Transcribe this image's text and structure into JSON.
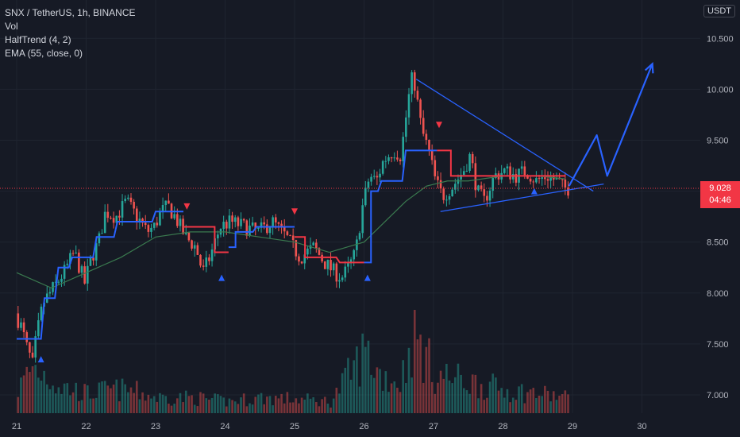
{
  "legend": {
    "symbol": "SNX / TetherUS, 1h, BINANCE",
    "vol": "Vol",
    "halftrend": "HalfTrend (4, 2)",
    "ema": "EMA (55, close, 0)"
  },
  "currency": "USDT",
  "current_price": "9.028",
  "countdown": "04:46",
  "colors": {
    "background": "#161a25",
    "up": "#26a69a",
    "down": "#ef5350",
    "halftrend_up": "#2962ff",
    "halftrend_down": "#f23645",
    "ema": "#3a7a4f",
    "drawing": "#2962ff"
  },
  "chart_data": {
    "type": "line",
    "title": "SNX / TetherUS, 1h, BINANCE",
    "xlabel": "",
    "ylabel": "",
    "x_ticks": [
      "21",
      "22",
      "23",
      "24",
      "25",
      "26",
      "27",
      "28",
      "29",
      "30"
    ],
    "y_ticks": [
      "10.500",
      "10.000",
      "9.500",
      "9.000",
      "8.500",
      "8.000",
      "7.500",
      "7.000"
    ],
    "ylim": [
      6.85,
      10.7
    ],
    "xlim": [
      21.0,
      30.5
    ],
    "grid": true,
    "current_price": 9.028,
    "price_path": [
      [
        21.0,
        7.8
      ],
      [
        21.1,
        7.65
      ],
      [
        21.15,
        7.5
      ],
      [
        21.25,
        7.3
      ],
      [
        21.3,
        7.55
      ],
      [
        21.4,
        7.9
      ],
      [
        21.55,
        8.05
      ],
      [
        21.7,
        8.2
      ],
      [
        21.85,
        8.4
      ],
      [
        22.0,
        8.1
      ],
      [
        22.1,
        8.35
      ],
      [
        22.2,
        8.5
      ],
      [
        22.3,
        8.8
      ],
      [
        22.45,
        8.75
      ],
      [
        22.6,
        8.9
      ],
      [
        22.75,
        8.75
      ],
      [
        22.9,
        8.6
      ],
      [
        23.0,
        8.65
      ],
      [
        23.1,
        8.8
      ],
      [
        23.2,
        8.85
      ],
      [
        23.3,
        8.75
      ],
      [
        23.45,
        8.55
      ],
      [
        23.6,
        8.45
      ],
      [
        23.7,
        8.2
      ],
      [
        23.8,
        8.35
      ],
      [
        23.95,
        8.65
      ],
      [
        24.1,
        8.7
      ],
      [
        24.3,
        8.65
      ],
      [
        24.5,
        8.6
      ],
      [
        24.7,
        8.7
      ],
      [
        24.9,
        8.55
      ],
      [
        25.0,
        8.45
      ],
      [
        25.1,
        8.35
      ],
      [
        25.3,
        8.45
      ],
      [
        25.45,
        8.3
      ],
      [
        25.6,
        8.2
      ],
      [
        25.7,
        8.15
      ],
      [
        25.8,
        8.25
      ],
      [
        25.9,
        8.4
      ],
      [
        26.0,
        8.85
      ],
      [
        26.1,
        9.15
      ],
      [
        26.2,
        9.1
      ],
      [
        26.3,
        9.3
      ],
      [
        26.45,
        9.4
      ],
      [
        26.55,
        9.35
      ],
      [
        26.7,
        10.1
      ],
      [
        26.75,
        10.05
      ],
      [
        26.85,
        9.6
      ],
      [
        26.95,
        9.4
      ],
      [
        27.05,
        9.1
      ],
      [
        27.15,
        8.95
      ],
      [
        27.3,
        9.05
      ],
      [
        27.45,
        9.2
      ],
      [
        27.55,
        9.35
      ],
      [
        27.65,
        9.0
      ],
      [
        27.75,
        8.9
      ],
      [
        27.9,
        9.15
      ],
      [
        28.05,
        9.2
      ],
      [
        28.2,
        9.15
      ],
      [
        28.35,
        9.2
      ],
      [
        28.5,
        9.1
      ],
      [
        28.65,
        9.15
      ],
      [
        28.8,
        9.1
      ],
      [
        28.9,
        9.028
      ]
    ],
    "volume_path": [
      [
        21.0,
        0.3
      ],
      [
        21.2,
        0.6
      ],
      [
        21.4,
        0.5
      ],
      [
        21.6,
        0.35
      ],
      [
        22.0,
        0.25
      ],
      [
        22.3,
        0.3
      ],
      [
        22.6,
        0.3
      ],
      [
        23.0,
        0.2
      ],
      [
        23.5,
        0.2
      ],
      [
        24.0,
        0.15
      ],
      [
        24.5,
        0.2
      ],
      [
        25.0,
        0.18
      ],
      [
        25.5,
        0.15
      ],
      [
        26.0,
        0.8
      ],
      [
        26.2,
        0.5
      ],
      [
        26.5,
        0.4
      ],
      [
        26.7,
        1.0
      ],
      [
        27.0,
        0.5
      ],
      [
        27.5,
        0.4
      ],
      [
        28.0,
        0.3
      ],
      [
        28.5,
        0.25
      ],
      [
        28.9,
        0.2
      ]
    ],
    "series": [
      {
        "name": "HalfTrend (4, 2)",
        "segments": [
          {
            "trend": "up",
            "points": [
              [
                21.0,
                7.55
              ],
              [
                21.35,
                7.55
              ],
              [
                21.4,
                7.95
              ],
              [
                21.55,
                7.95
              ],
              [
                21.6,
                8.25
              ],
              [
                21.75,
                8.25
              ],
              [
                21.8,
                8.35
              ],
              [
                22.1,
                8.35
              ],
              [
                22.15,
                8.55
              ],
              [
                22.4,
                8.55
              ],
              [
                22.45,
                8.7
              ],
              [
                22.95,
                8.7
              ],
              [
                23.0,
                8.8
              ],
              [
                23.4,
                8.8
              ]
            ]
          },
          {
            "trend": "down",
            "points": [
              [
                23.4,
                8.65
              ],
              [
                23.85,
                8.65
              ],
              [
                23.85,
                8.4
              ],
              [
                24.05,
                8.4
              ]
            ]
          },
          {
            "trend": "up",
            "points": [
              [
                24.05,
                8.45
              ],
              [
                24.15,
                8.45
              ],
              [
                24.15,
                8.6
              ],
              [
                24.4,
                8.6
              ],
              [
                24.45,
                8.65
              ],
              [
                24.95,
                8.65
              ],
              [
                25.0,
                8.65
              ]
            ]
          },
          {
            "trend": "down",
            "points": [
              [
                25.0,
                8.55
              ],
              [
                25.15,
                8.55
              ],
              [
                25.15,
                8.35
              ],
              [
                25.6,
                8.35
              ],
              [
                25.65,
                8.3
              ],
              [
                26.0,
                8.3
              ]
            ]
          },
          {
            "trend": "up",
            "points": [
              [
                26.0,
                8.3
              ],
              [
                26.1,
                8.3
              ],
              [
                26.1,
                9.0
              ],
              [
                26.2,
                9.0
              ],
              [
                26.25,
                9.1
              ],
              [
                26.55,
                9.1
              ],
              [
                26.6,
                9.4
              ],
              [
                27.05,
                9.4
              ]
            ]
          },
          {
            "trend": "down",
            "points": [
              [
                27.05,
                9.4
              ],
              [
                27.25,
                9.4
              ],
              [
                27.25,
                9.15
              ],
              [
                27.6,
                9.15
              ],
              [
                27.65,
                9.15
              ],
              [
                28.0,
                9.15
              ]
            ]
          },
          {
            "trend": "down",
            "points": [
              [
                28.0,
                9.15
              ],
              [
                28.9,
                9.15
              ]
            ]
          }
        ]
      },
      {
        "name": "EMA (55, close, 0)",
        "points": [
          [
            21.0,
            8.2
          ],
          [
            21.5,
            8.05
          ],
          [
            22.0,
            8.2
          ],
          [
            22.5,
            8.35
          ],
          [
            23.0,
            8.55
          ],
          [
            23.5,
            8.6
          ],
          [
            24.0,
            8.6
          ],
          [
            24.5,
            8.55
          ],
          [
            25.0,
            8.5
          ],
          [
            25.5,
            8.4
          ],
          [
            26.0,
            8.5
          ],
          [
            26.3,
            8.7
          ],
          [
            26.6,
            8.9
          ],
          [
            26.9,
            9.05
          ],
          [
            27.2,
            9.1
          ],
          [
            27.5,
            9.1
          ],
          [
            28.0,
            9.15
          ],
          [
            28.5,
            9.15
          ],
          [
            28.9,
            9.12
          ]
        ]
      }
    ],
    "signals": [
      {
        "x": 21.35,
        "y": 7.35,
        "type": "buy"
      },
      {
        "x": 23.45,
        "y": 8.85,
        "type": "sell"
      },
      {
        "x": 23.95,
        "y": 8.15,
        "type": "buy"
      },
      {
        "x": 25.0,
        "y": 8.8,
        "type": "sell"
      },
      {
        "x": 26.05,
        "y": 8.15,
        "type": "buy"
      },
      {
        "x": 27.08,
        "y": 9.65,
        "type": "sell"
      },
      {
        "x": 28.45,
        "y": 9.0,
        "type": "buy"
      }
    ],
    "drawings": [
      {
        "type": "trendline",
        "points": [
          [
            26.75,
            10.1
          ],
          [
            29.3,
            9.0
          ]
        ]
      },
      {
        "type": "trendline",
        "points": [
          [
            27.1,
            8.8
          ],
          [
            29.45,
            9.07
          ]
        ]
      },
      {
        "type": "arrow",
        "points": [
          [
            28.95,
            9.05
          ],
          [
            29.35,
            9.55
          ],
          [
            29.5,
            9.15
          ],
          [
            30.15,
            10.25
          ]
        ]
      }
    ]
  }
}
